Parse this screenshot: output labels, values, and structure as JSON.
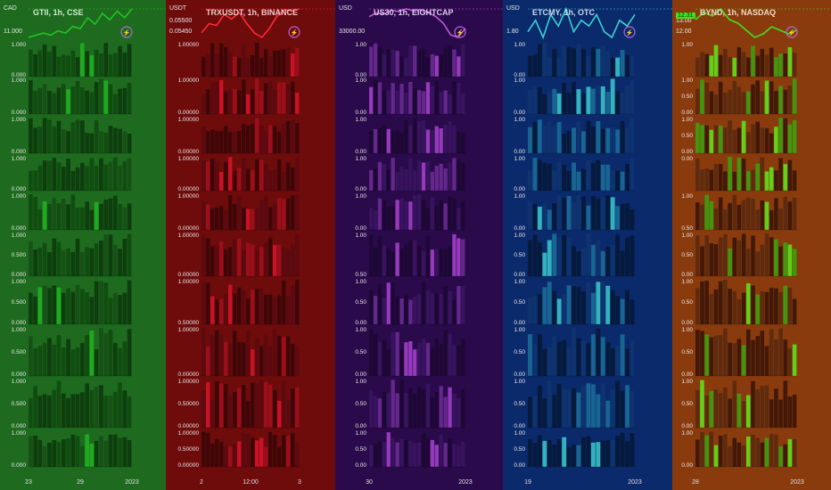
{
  "columns": [
    {
      "id": "gtii",
      "title": "GTII, 1h, CSE",
      "currency": "CAD",
      "bg": "#1e6b1f",
      "titleColor": "#cfe8cf",
      "lineColor": "#21c421",
      "cellColors": [
        "#0c3a0c",
        "#0f4a0f",
        "#164f16",
        "#20b020"
      ],
      "price_label": "11.000",
      "x_ticks": [
        "23",
        "29",
        "2023"
      ],
      "pane_labels": [
        [
          "1.000",
          "0.000"
        ],
        [
          "1.000",
          "0.000"
        ],
        [
          "1.000",
          "0.000"
        ],
        [
          "1.000",
          "0.000"
        ],
        [
          "1.000",
          "0.000"
        ],
        [
          "1.000",
          "0.500",
          "0.000"
        ],
        [
          "1.000",
          "0.500",
          "0.000"
        ],
        [
          "1.000",
          "0.500",
          "0.000"
        ],
        [
          "1.000",
          "0.500",
          "0.000"
        ],
        [
          "1.000",
          "0.000"
        ]
      ],
      "price_series": [
        10.4,
        10.5,
        10.6,
        10.5,
        10.7,
        10.6,
        10.9,
        10.8,
        11.3,
        11.0,
        11.5,
        11.2,
        11.6,
        11.3,
        11.7
      ]
    },
    {
      "id": "trx",
      "title": "TRXUSDT, 1h, BINANCE",
      "currency": "USDT",
      "bg": "#6e0b0b",
      "titleColor": "#f0caca",
      "lineColor": "#ff2a3a",
      "cellColors": [
        "#3a0508",
        "#5a0a10",
        "#a0101c",
        "#d4132a"
      ],
      "price_label": "0.05450",
      "price_label_top": "0.05500",
      "x_ticks": [
        "2",
        "12:00",
        "3"
      ],
      "pane_labels": [
        [
          "1.00000"
        ],
        [
          "1.00000",
          "0.00000"
        ],
        [
          "1.00000",
          "0.00000"
        ],
        [
          "1.00000",
          "0.00000"
        ],
        [
          "1.00000",
          "0.00000"
        ],
        [
          "1.00000",
          "0.00000"
        ],
        [
          "1.00000",
          "0.50000"
        ],
        [
          "1.00000",
          "0.00000"
        ],
        [
          "1.00000",
          "0.50000",
          "0.00000"
        ],
        [
          "1.00000",
          "0.50000",
          "0.00000"
        ]
      ],
      "price_series": [
        0.0547,
        0.0548,
        0.05478,
        0.0549,
        0.05485,
        0.05492,
        0.0548,
        0.0547,
        0.05465,
        0.05475,
        0.05488,
        0.05495,
        0.05494,
        0.05496
      ]
    },
    {
      "id": "us30",
      "title": "US30, 1h, EIGHTCAP",
      "currency": "USD",
      "bg": "#2a0a4a",
      "titleColor": "#dccbee",
      "lineColor": "#c05bd8",
      "cellColors": [
        "#1c0833",
        "#3a1460",
        "#6a2a92",
        "#a23fc9"
      ],
      "price_label": "33000.00",
      "x_ticks": [
        "30",
        "2023"
      ],
      "pane_labels": [
        [
          "1.00",
          "0.00"
        ],
        [
          "1.00",
          "0.00"
        ],
        [
          "1.00",
          "0.00"
        ],
        [
          "1.00",
          "0.00"
        ],
        [
          "1.00",
          "0.00"
        ],
        [
          "1.00",
          "0.50"
        ],
        [
          "1.00",
          "0.50",
          "0.00"
        ],
        [
          "1.00",
          "0.50",
          "0.00"
        ],
        [
          "1.00",
          "0.50",
          "0.00"
        ],
        [
          "1.00",
          "0.50",
          "0.00"
        ]
      ],
      "price_series": [
        33150,
        33180,
        33170,
        33200,
        33190,
        33210,
        33195,
        33205,
        33180,
        33150,
        33100,
        33010,
        32990,
        33060
      ]
    },
    {
      "id": "etcmy",
      "title": "ETCMY, 1h, OTC",
      "currency": "USD",
      "bg": "#0b2a6b",
      "titleColor": "#c8d8f0",
      "lineColor": "#3ad0d6",
      "cellColors": [
        "#061838",
        "#0e3470",
        "#1a6a98",
        "#38c0c8"
      ],
      "price_label": "1.80",
      "x_ticks": [
        "19",
        "2023"
      ],
      "pane_labels": [
        [
          "1.00",
          "0.00"
        ],
        [
          "1.00",
          "0.00"
        ],
        [
          "1.00",
          "0.00"
        ],
        [
          "1.00",
          "0.00"
        ],
        [
          "1.00",
          "0.00"
        ],
        [
          "1.00",
          "0.50",
          "0.00"
        ],
        [
          "1.00",
          "0.50",
          "0.00"
        ],
        [
          "1.00",
          "0.50",
          "0.00"
        ],
        [
          "1.00",
          "0.50",
          "0.00"
        ],
        [
          "1.00",
          "0.50",
          "0.00"
        ]
      ],
      "price_series": [
        1.86,
        1.88,
        1.85,
        1.89,
        1.87,
        1.9,
        1.86,
        1.88,
        1.87,
        1.89,
        1.86,
        1.85,
        1.88,
        1.87,
        1.89
      ]
    },
    {
      "id": "bynd",
      "title": "BYND, 1h, NASDAQ",
      "currency": "",
      "bg": "#8a3b0e",
      "titleColor": "#f0d8c8",
      "lineColor": "#3ee21c",
      "cellColors": [
        "#3a1508",
        "#5a2a10",
        "#3aa010",
        "#5de01a"
      ],
      "price_label": "12.00",
      "price_label_top": "13.00",
      "price_badge": "12.31",
      "x_ticks": [
        "28",
        "2023"
      ],
      "pane_labels": [
        [
          "1.00"
        ],
        [
          "1.00",
          "0.50",
          "0.00"
        ],
        [
          "1.00",
          "0.50",
          "0.00"
        ],
        [
          "0.00"
        ],
        [
          "1.00",
          "0.50"
        ],
        [
          "1.00",
          "0.50",
          "0.00"
        ],
        [
          "1.00",
          "0.50",
          "0.00"
        ],
        [
          "1.00",
          "0.50",
          "0.00"
        ],
        [
          "1.00",
          "0.50",
          "0.00"
        ],
        [
          "1.00",
          "0.00"
        ]
      ],
      "price_series": [
        12.6,
        12.8,
        12.7,
        12.9,
        12.6,
        12.5,
        12.3,
        12.1,
        12.2,
        12.4,
        12.3,
        12.2,
        12.31
      ]
    }
  ]
}
